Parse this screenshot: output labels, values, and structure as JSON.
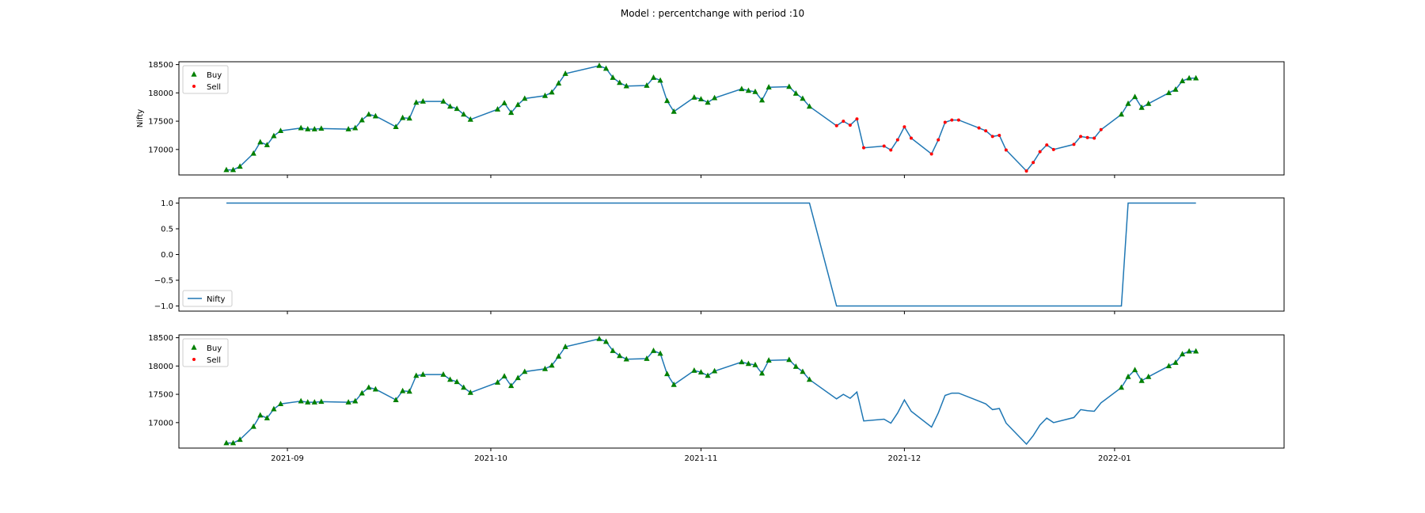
{
  "title": "Model : percentchange with period :10",
  "colors": {
    "line": "#1f77b4",
    "buy": "#008000",
    "sell": "#ff0000",
    "frame": "#000000"
  },
  "x_axis": {
    "range": [
      "2021-08-16",
      "2022-01-26"
    ],
    "ticks": [
      {
        "date": "2021-09-01",
        "label": "2021-09"
      },
      {
        "date": "2021-10-01",
        "label": "2021-10"
      },
      {
        "date": "2021-11-01",
        "label": "2021-11"
      },
      {
        "date": "2021-12-01",
        "label": "2021-12"
      },
      {
        "date": "2022-01-01",
        "label": "2022-01"
      }
    ]
  },
  "chart_data": [
    {
      "type": "line",
      "ylabel": "Nifty",
      "ylim": [
        16550,
        18550
      ],
      "yticks": [
        17000,
        17500,
        18000,
        18500
      ],
      "legend": {
        "placement": "top-left",
        "entries": [
          "Buy",
          "Sell"
        ]
      },
      "series": [
        {
          "source": "nifty"
        }
      ],
      "markers": "buy-sell"
    },
    {
      "type": "line",
      "ylabel": "",
      "ylim": [
        -1.1,
        1.1
      ],
      "yticks": [
        -1.0,
        -0.5,
        0.0,
        0.5,
        1.0
      ],
      "legend": {
        "placement": "bottom-left",
        "entries": [
          "Nifty"
        ]
      },
      "series": [
        {
          "name": "Nifty",
          "source": "signal"
        }
      ],
      "markers": "none"
    },
    {
      "type": "line",
      "ylabel": "",
      "ylim": [
        16550,
        18550
      ],
      "yticks": [
        17000,
        17500,
        18000,
        18500
      ],
      "legend": {
        "placement": "top-left",
        "entries": [
          "Buy",
          "Sell"
        ]
      },
      "series": [
        {
          "source": "nifty"
        }
      ],
      "markers": "buy-only"
    }
  ],
  "data": {
    "nifty": [
      [
        "2021-08-23",
        16640
      ],
      [
        "2021-08-24",
        16640
      ],
      [
        "2021-08-25",
        16700
      ],
      [
        "2021-08-27",
        16930
      ],
      [
        "2021-08-28",
        17130
      ],
      [
        "2021-08-29",
        17080
      ],
      [
        "2021-08-30",
        17240
      ],
      [
        "2021-08-31",
        17330
      ],
      [
        "2021-09-03",
        17380
      ],
      [
        "2021-09-04",
        17360
      ],
      [
        "2021-09-05",
        17360
      ],
      [
        "2021-09-06",
        17370
      ],
      [
        "2021-09-10",
        17360
      ],
      [
        "2021-09-11",
        17380
      ],
      [
        "2021-09-12",
        17520
      ],
      [
        "2021-09-13",
        17620
      ],
      [
        "2021-09-14",
        17590
      ],
      [
        "2021-09-17",
        17400
      ],
      [
        "2021-09-18",
        17560
      ],
      [
        "2021-09-19",
        17550
      ],
      [
        "2021-09-20",
        17830
      ],
      [
        "2021-09-21",
        17850
      ],
      [
        "2021-09-24",
        17850
      ],
      [
        "2021-09-25",
        17760
      ],
      [
        "2021-09-26",
        17720
      ],
      [
        "2021-09-27",
        17620
      ],
      [
        "2021-09-28",
        17530
      ],
      [
        "2021-10-02",
        17710
      ],
      [
        "2021-10-03",
        17820
      ],
      [
        "2021-10-04",
        17650
      ],
      [
        "2021-10-05",
        17790
      ],
      [
        "2021-10-06",
        17900
      ],
      [
        "2021-10-09",
        17950
      ],
      [
        "2021-10-10",
        18010
      ],
      [
        "2021-10-11",
        18170
      ],
      [
        "2021-10-12",
        18340
      ],
      [
        "2021-10-17",
        18480
      ],
      [
        "2021-10-18",
        18430
      ],
      [
        "2021-10-19",
        18270
      ],
      [
        "2021-10-20",
        18180
      ],
      [
        "2021-10-21",
        18120
      ],
      [
        "2021-10-24",
        18130
      ],
      [
        "2021-10-25",
        18270
      ],
      [
        "2021-10-26",
        18220
      ],
      [
        "2021-10-27",
        17860
      ],
      [
        "2021-10-28",
        17670
      ],
      [
        "2021-10-31",
        17920
      ],
      [
        "2021-11-01",
        17890
      ],
      [
        "2021-11-02",
        17830
      ],
      [
        "2021-11-03",
        17910
      ],
      [
        "2021-11-07",
        18070
      ],
      [
        "2021-11-08",
        18040
      ],
      [
        "2021-11-09",
        18020
      ],
      [
        "2021-11-10",
        17870
      ],
      [
        "2021-11-11",
        18100
      ],
      [
        "2021-11-14",
        18110
      ],
      [
        "2021-11-15",
        17990
      ],
      [
        "2021-11-16",
        17900
      ],
      [
        "2021-11-17",
        17760
      ],
      [
        "2021-11-21",
        17420
      ],
      [
        "2021-11-22",
        17500
      ],
      [
        "2021-11-23",
        17430
      ],
      [
        "2021-11-24",
        17540
      ],
      [
        "2021-11-25",
        17030
      ],
      [
        "2021-11-28",
        17060
      ],
      [
        "2021-11-29",
        16990
      ],
      [
        "2021-11-30",
        17170
      ],
      [
        "2021-12-01",
        17400
      ],
      [
        "2021-12-02",
        17200
      ],
      [
        "2021-12-05",
        16920
      ],
      [
        "2021-12-06",
        17170
      ],
      [
        "2021-12-07",
        17480
      ],
      [
        "2021-12-08",
        17520
      ],
      [
        "2021-12-09",
        17520
      ],
      [
        "2021-12-12",
        17380
      ],
      [
        "2021-12-13",
        17330
      ],
      [
        "2021-12-14",
        17230
      ],
      [
        "2021-12-15",
        17250
      ],
      [
        "2021-12-16",
        16990
      ],
      [
        "2021-12-19",
        16620
      ],
      [
        "2021-12-20",
        16770
      ],
      [
        "2021-12-21",
        16960
      ],
      [
        "2021-12-22",
        17080
      ],
      [
        "2021-12-23",
        17000
      ],
      [
        "2021-12-26",
        17090
      ],
      [
        "2021-12-27",
        17230
      ],
      [
        "2021-12-28",
        17210
      ],
      [
        "2021-12-29",
        17200
      ],
      [
        "2021-12-30",
        17350
      ],
      [
        "2022-01-02",
        17620
      ],
      [
        "2022-01-03",
        17810
      ],
      [
        "2022-01-04",
        17930
      ],
      [
        "2022-01-05",
        17740
      ],
      [
        "2022-01-06",
        17810
      ],
      [
        "2022-01-09",
        18000
      ],
      [
        "2022-01-10",
        18060
      ],
      [
        "2022-01-11",
        18210
      ],
      [
        "2022-01-12",
        18260
      ],
      [
        "2022-01-13",
        18260
      ]
    ],
    "signal": [
      [
        "2021-08-23",
        1
      ],
      [
        "2021-11-17",
        1
      ],
      [
        "2021-11-21",
        -1
      ],
      [
        "2022-01-02",
        -1
      ],
      [
        "2022-01-03",
        1
      ],
      [
        "2022-01-13",
        1
      ]
    ],
    "sell_window": [
      "2021-11-21",
      "2022-01-01"
    ]
  }
}
